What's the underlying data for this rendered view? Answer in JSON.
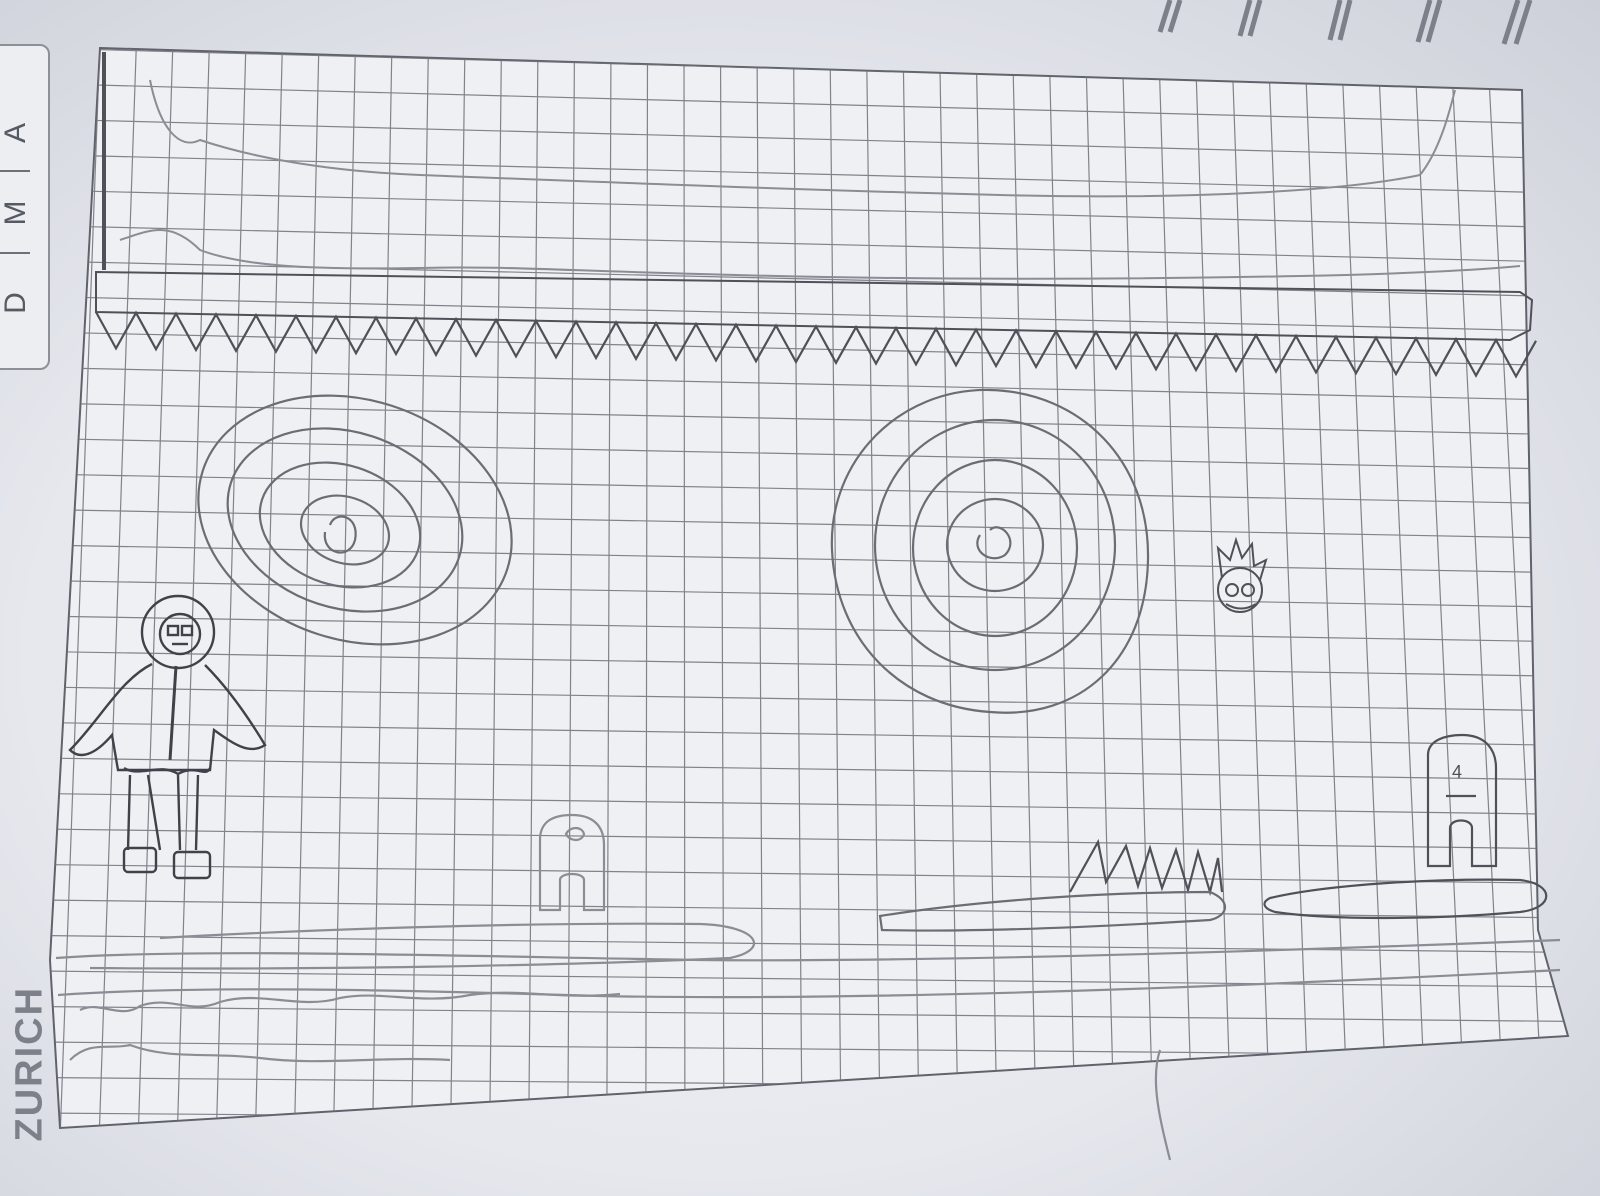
{
  "notebook": {
    "date_tab": {
      "letters": [
        "D",
        "M",
        "A"
      ]
    },
    "brand": "ZURICH"
  },
  "sketch": {
    "characters": [
      {
        "name": "hooded-player"
      },
      {
        "name": "crewmate-small"
      },
      {
        "name": "crewmate-with-number",
        "label": "4"
      },
      {
        "name": "fireball-creature"
      }
    ],
    "hazards": [
      "ceiling-spikes",
      "floor-spikes",
      "spiral-portal",
      "spiral-portal"
    ],
    "platforms": [
      "ceiling-slab",
      "ground",
      "floating-platform",
      "floating-platform",
      "floating-platform"
    ]
  },
  "colors": {
    "paper": "#eef0f4",
    "grid": "#6e7078",
    "pencil": "#4e5158",
    "pencil_light": "#9498a0"
  }
}
